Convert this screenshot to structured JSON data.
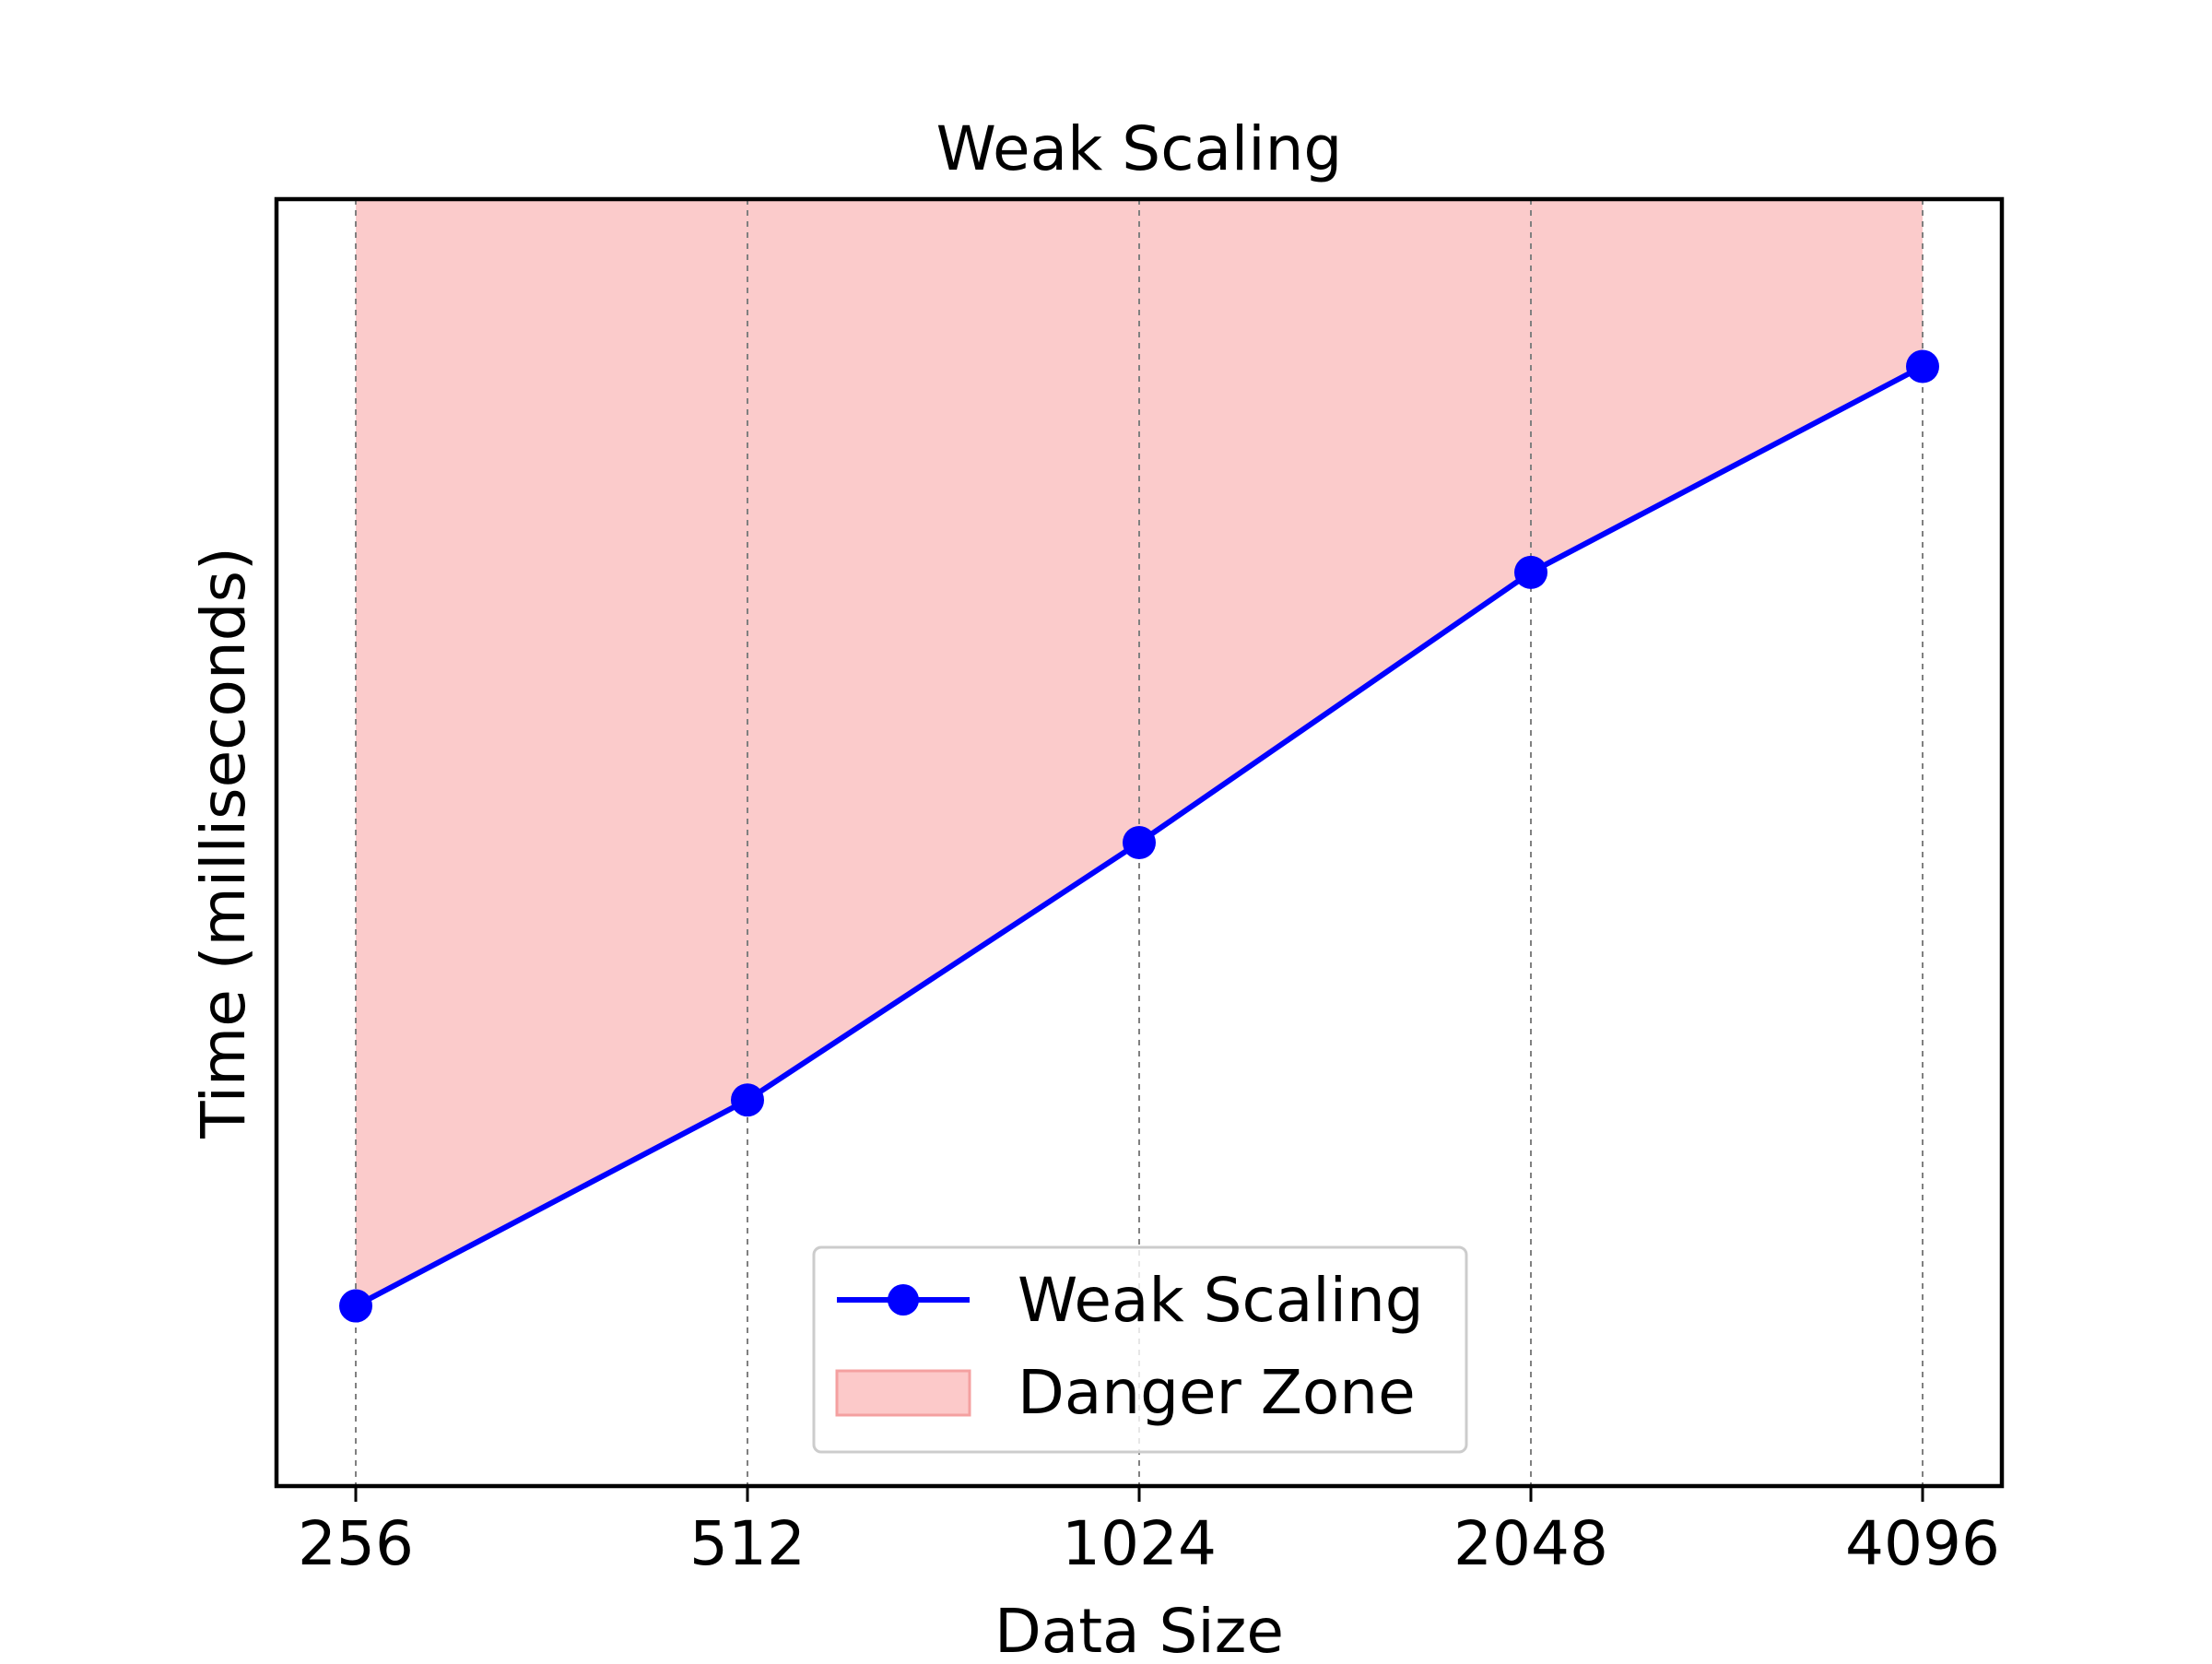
{
  "chart_data": {
    "type": "line",
    "title": "Weak Scaling",
    "xlabel": "Data Size",
    "ylabel": "Time (milliseconds)",
    "x_scale": "log2",
    "categories": [
      "256",
      "512",
      "1024",
      "2048",
      "4096"
    ],
    "x": [
      256,
      512,
      1024,
      2048,
      4096
    ],
    "y_ticks_shown": false,
    "series": [
      {
        "name": "Weak Scaling",
        "values": [
          0.14,
          0.3,
          0.5,
          0.71,
          0.87
        ],
        "color": "#0000ff",
        "marker": "circle"
      }
    ],
    "fill_region": {
      "name": "Danger Zone",
      "between": "series and top of axes",
      "color": "#f8a8a8"
    },
    "grid": "vertical dashed at x ticks",
    "legend_position": "lower center",
    "legend": [
      {
        "label": "Weak Scaling",
        "kind": "line-marker",
        "color": "#0000ff"
      },
      {
        "label": "Danger Zone",
        "kind": "patch",
        "color": "#f8a8a8"
      }
    ]
  }
}
